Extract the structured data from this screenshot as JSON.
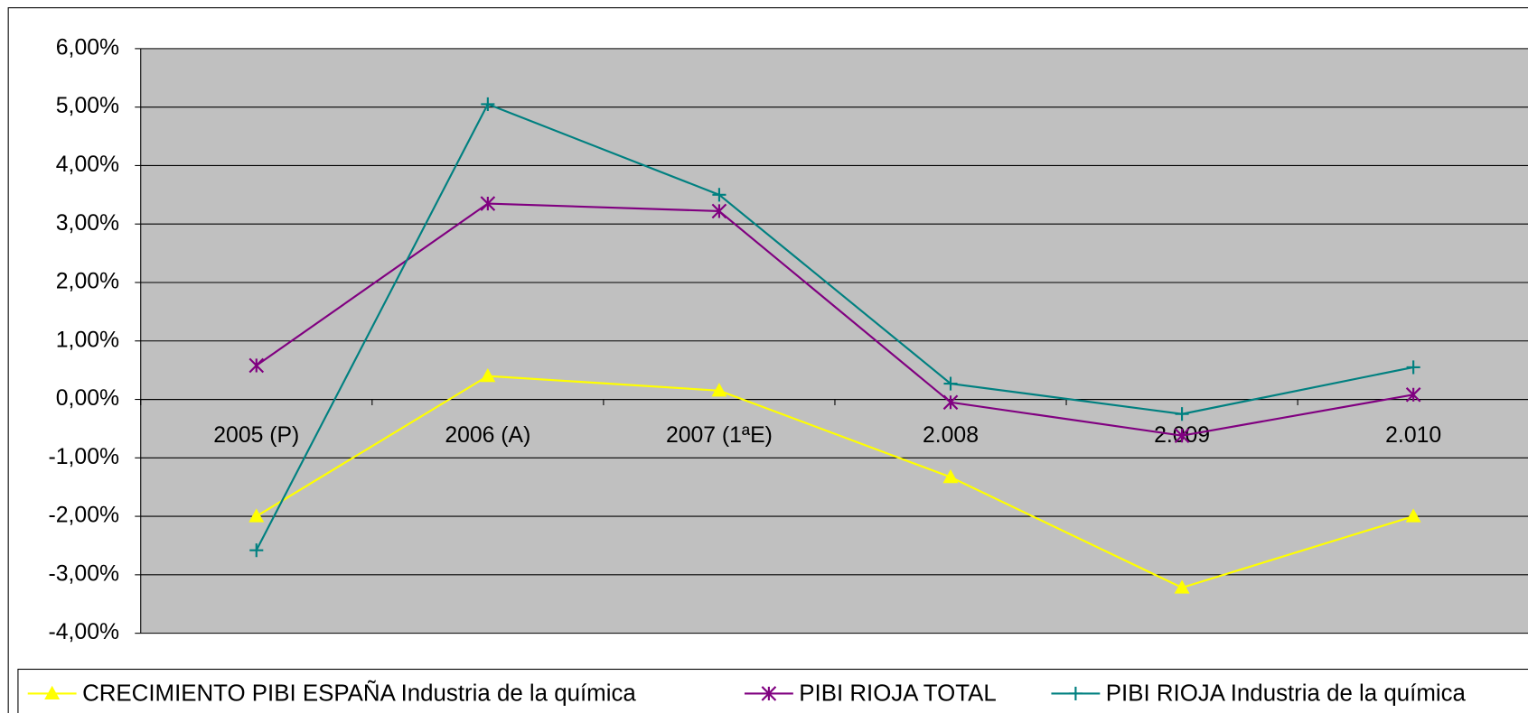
{
  "chart_data": {
    "type": "line",
    "categories": [
      "2005 (P)",
      "2006 (A)",
      "2007 (1ªE)",
      "2.008",
      "2.009",
      "2.010"
    ],
    "series": [
      {
        "name": "CRECIMIENTO PIBI ESPAÑA Industria de la química",
        "color": "#ffff00",
        "marker": "triangle",
        "values": [
          -2.0,
          0.4,
          0.15,
          -1.33,
          -3.22,
          -2.0
        ]
      },
      {
        "name": "PIBI RIOJA TOTAL",
        "color": "#800080",
        "marker": "asterisk",
        "values": [
          0.58,
          3.35,
          3.22,
          -0.05,
          -0.62,
          0.08
        ]
      },
      {
        "name": "PIBI RIOJA Industria de la química",
        "color": "#008080",
        "marker": "plus",
        "values": [
          -2.58,
          5.05,
          3.5,
          0.27,
          -0.25,
          0.55
        ]
      }
    ],
    "ylim": [
      -4,
      6
    ],
    "yticks": [
      {
        "value": -4,
        "label": "-4,00%"
      },
      {
        "value": -3,
        "label": "-3,00%"
      },
      {
        "value": -2,
        "label": "-2,00%"
      },
      {
        "value": -1,
        "label": "-1,00%"
      },
      {
        "value": 0,
        "label": "0,00%"
      },
      {
        "value": 1,
        "label": "1,00%"
      },
      {
        "value": 2,
        "label": "2,00%"
      },
      {
        "value": 3,
        "label": "3,00%"
      },
      {
        "value": 4,
        "label": "4,00%"
      },
      {
        "value": 5,
        "label": "5,00%"
      },
      {
        "value": 6,
        "label": "6,00%"
      }
    ],
    "grid": true,
    "plot_background": "#c0c0c0",
    "legend": "bottom"
  }
}
